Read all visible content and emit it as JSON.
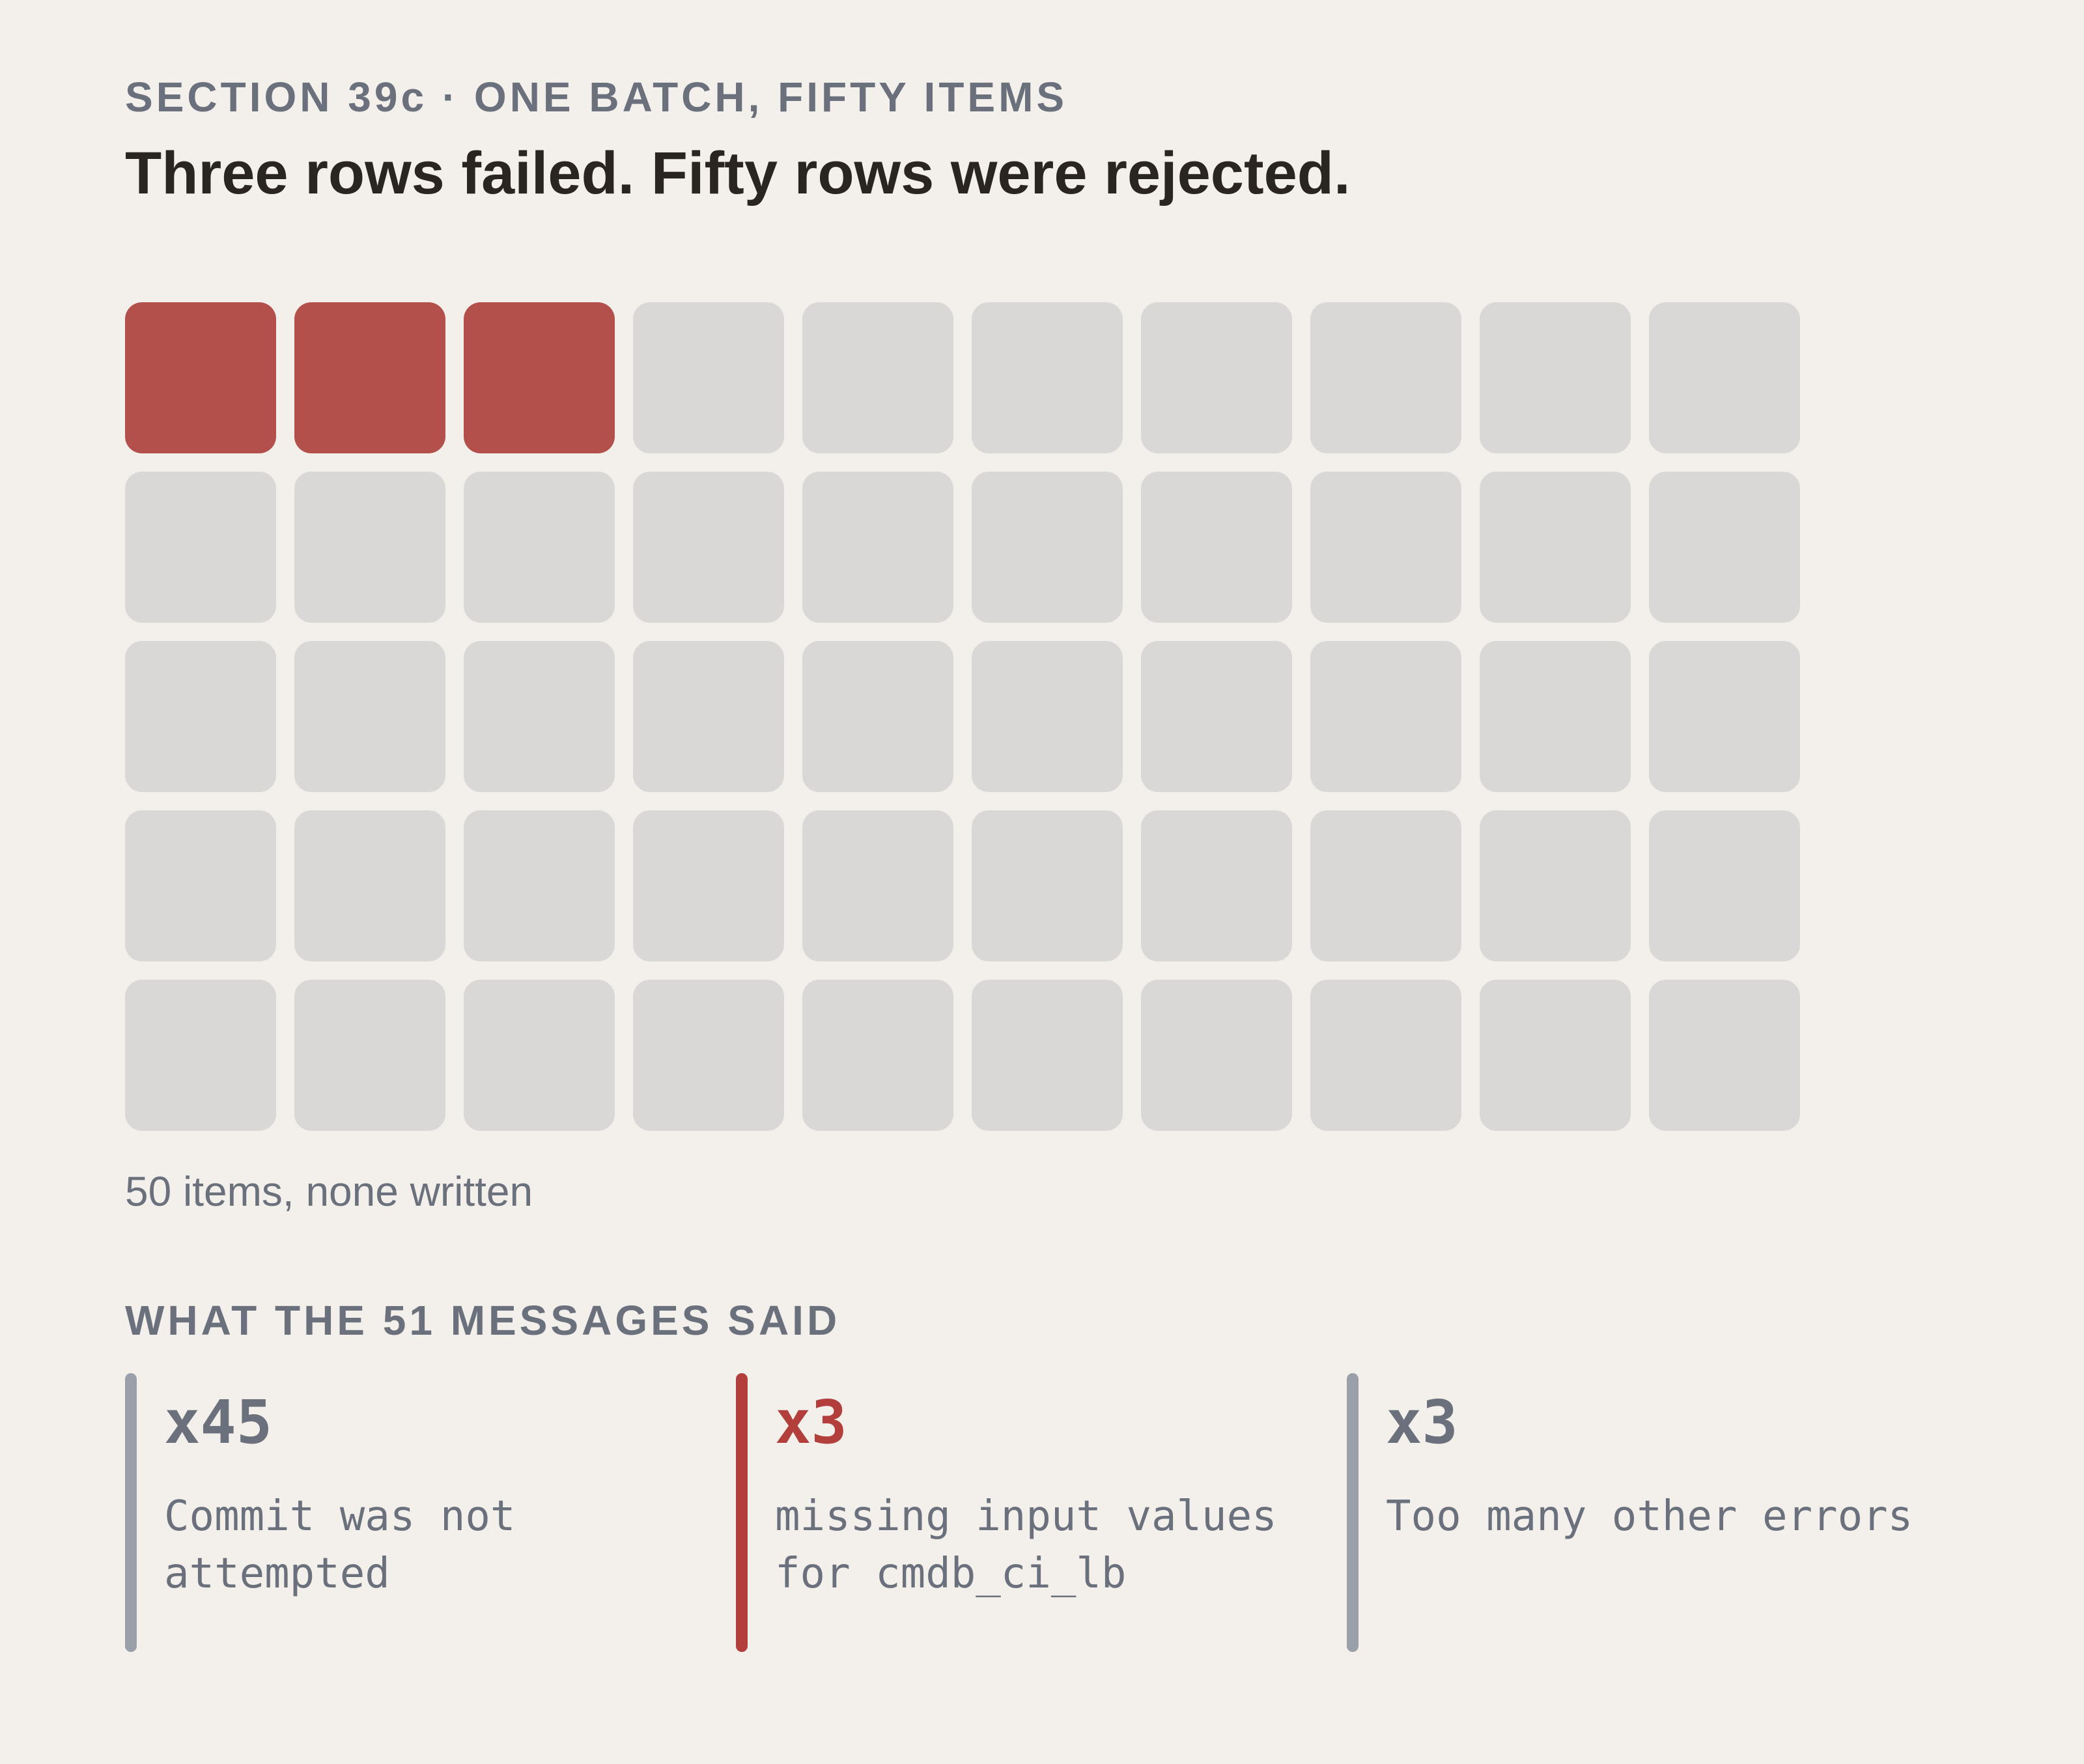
{
  "header": {
    "eyebrow": "SECTION 39c · ONE BATCH, FIFTY ITEMS",
    "headline": "Three rows failed. Fifty rows were rejected."
  },
  "batch": {
    "total_items": 50,
    "failed_items": 3,
    "caption": "50 items, none written",
    "colors": {
      "failed": "#b3504c",
      "rejected": "#d9d8d6"
    }
  },
  "messages": {
    "heading": "WHAT THE 51 MESSAGES SAID",
    "items": [
      {
        "count": "x45",
        "text": "Commit was not attempted",
        "accent": false,
        "color": "#9aa0aa"
      },
      {
        "count": "x3",
        "text": "missing input values for cmdb_ci_lb",
        "accent": true,
        "color": "#b23f3c"
      },
      {
        "count": "x3",
        "text": "Too many other errors",
        "accent": false,
        "color": "#9aa0aa"
      }
    ]
  }
}
